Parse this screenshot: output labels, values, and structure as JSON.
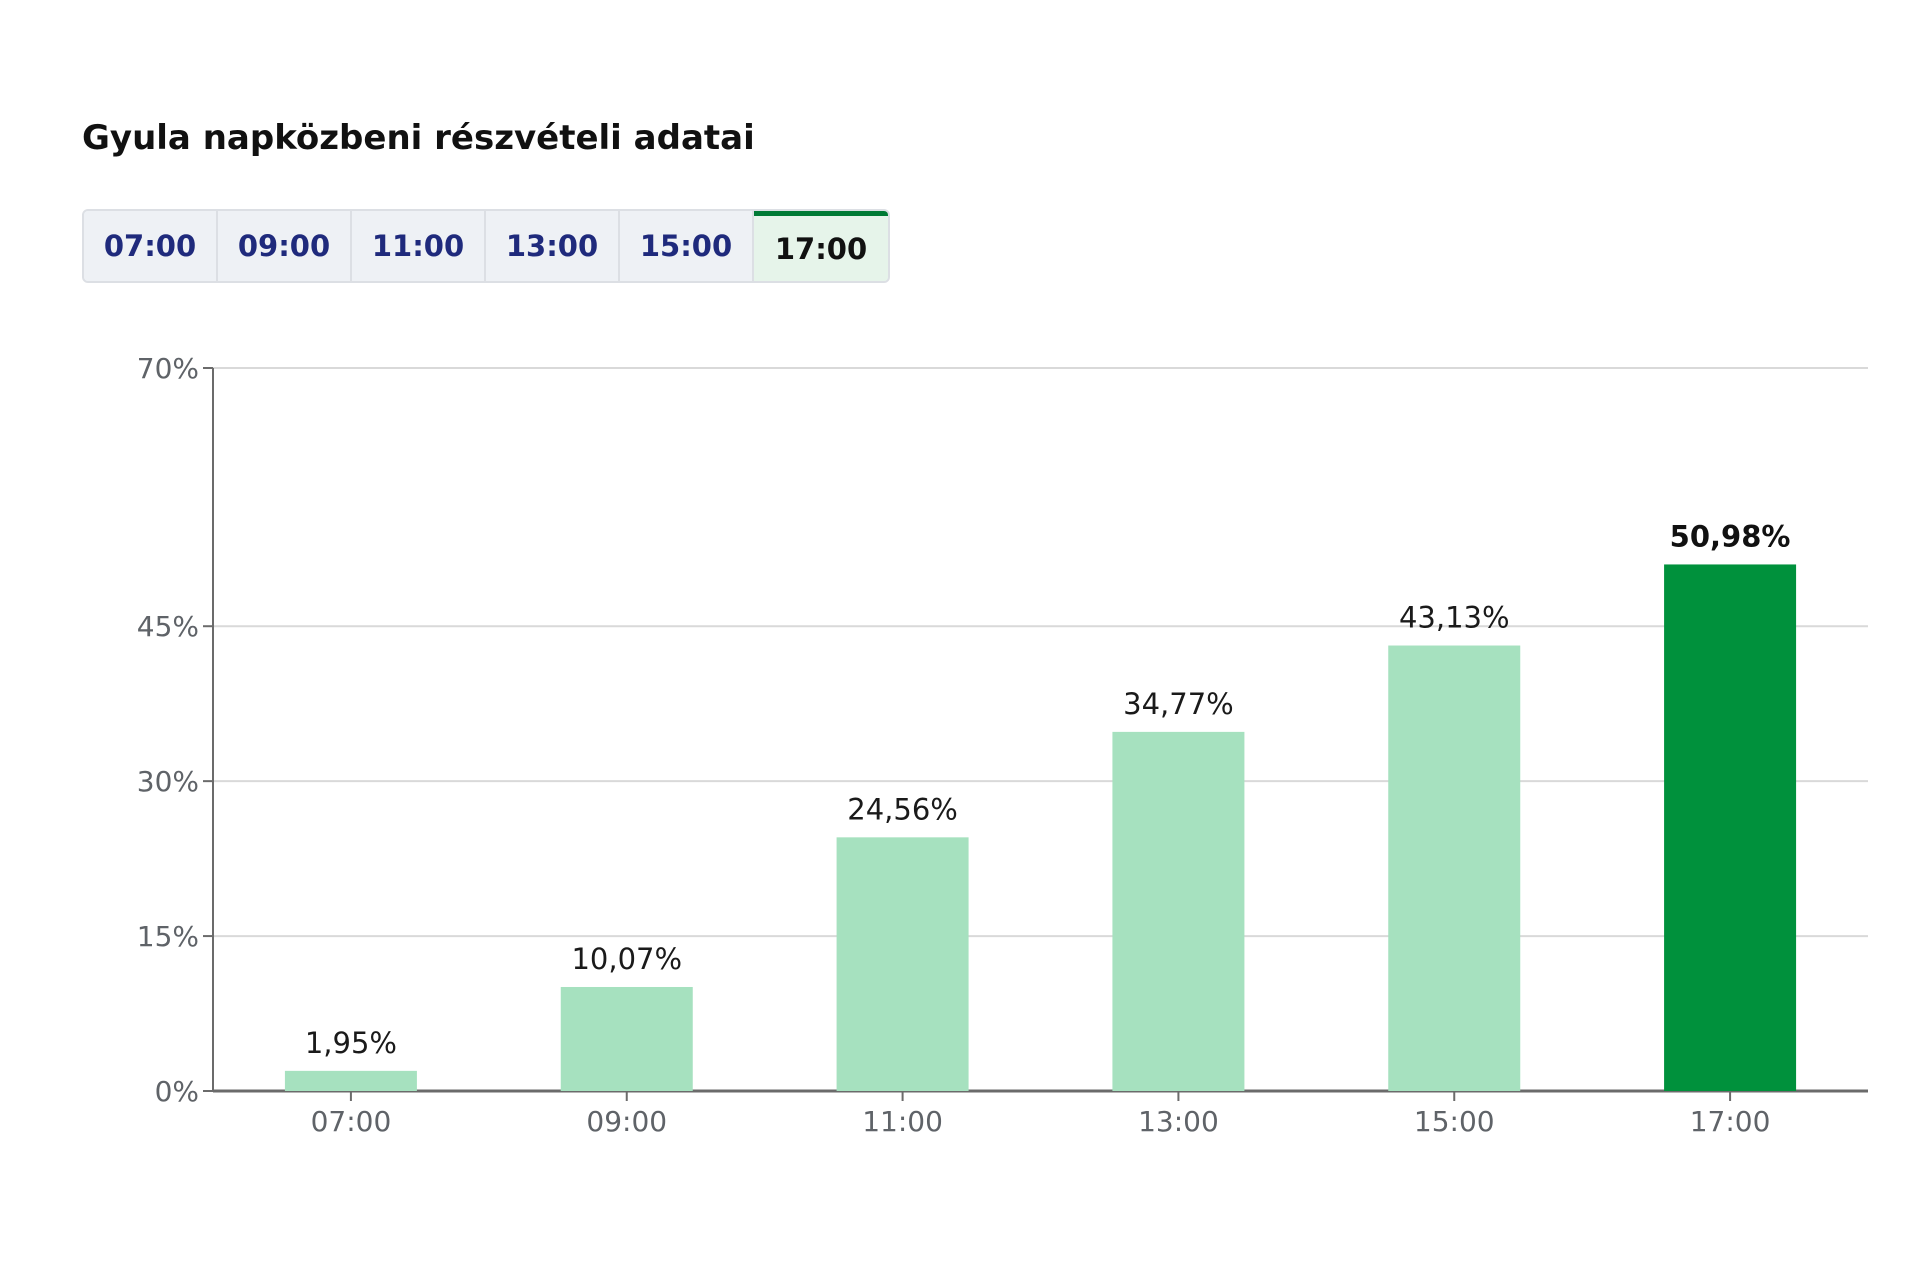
{
  "title": "Gyula napközbeni részvételi adatai",
  "tabs": [
    {
      "label": "07:00",
      "active": false
    },
    {
      "label": "09:00",
      "active": false
    },
    {
      "label": "11:00",
      "active": false
    },
    {
      "label": "13:00",
      "active": false
    },
    {
      "label": "15:00",
      "active": false
    },
    {
      "label": "17:00",
      "active": true
    }
  ],
  "colors": {
    "bar": "#a6e1bf",
    "bar_highlight": "#00913c",
    "tab_active_border": "#007a35",
    "tab_text": "#1f2a7c",
    "grid": "#d9d9d9",
    "axis": "#6b6b6b"
  },
  "chart_data": {
    "type": "bar",
    "categories": [
      "07:00",
      "09:00",
      "11:00",
      "13:00",
      "15:00",
      "17:00"
    ],
    "values": [
      1.95,
      10.07,
      24.56,
      34.77,
      43.13,
      50.98
    ],
    "value_labels": [
      "1,95%",
      "10,07%",
      "24,56%",
      "34,77%",
      "43,13%",
      "50,98%"
    ],
    "highlight_index": 5,
    "y_ticks": [
      0,
      15,
      30,
      45,
      70
    ],
    "y_tick_labels": [
      "0%",
      "15%",
      "30%",
      "45%",
      "70%"
    ],
    "ylim": [
      0,
      70
    ],
    "grid": true,
    "title": "",
    "xlabel": "",
    "ylabel": ""
  }
}
